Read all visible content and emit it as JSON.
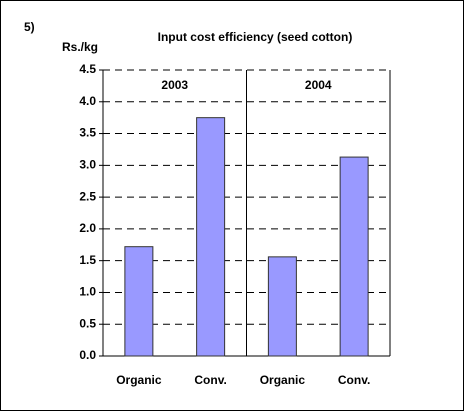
{
  "chart_data": {
    "type": "bar",
    "label": "5)",
    "title": "Input cost efficiency (seed cotton)",
    "y_label": "Rs./kg",
    "groups": [
      "2003",
      "2004"
    ],
    "categories": [
      "Organic",
      "Conv.",
      "Organic",
      "Conv."
    ],
    "values": [
      1.72,
      3.75,
      1.56,
      3.13
    ],
    "color": "#9999ff",
    "ylim": [
      0,
      4.5
    ],
    "yticks": [
      {
        "value": 0,
        "label": "0.0"
      },
      0.5,
      {
        "value": 1,
        "label": "1.0"
      },
      1.5,
      {
        "value": 2,
        "label": "2.0"
      },
      2.5,
      {
        "value": 3,
        "label": "3.0"
      },
      3.5,
      {
        "value": 4,
        "label": "4.0"
      },
      4.5
    ],
    "grid": true
  }
}
